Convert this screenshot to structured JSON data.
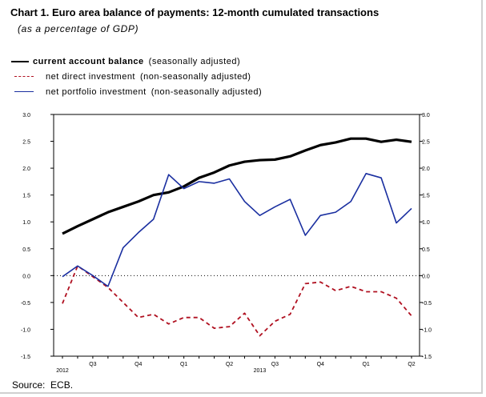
{
  "title": "Chart 1. Euro area balance of payments: 12-month cumulated transactions",
  "subtitle": "(as a percentage of GDP)",
  "legend": [
    {
      "label": "current account balance",
      "note": "(seasonally adjusted)",
      "color": "#000000",
      "style": "solid-bold"
    },
    {
      "label": "net direct investment",
      "note": "(non-seasonally adjusted)",
      "color": "#b01020",
      "style": "dashed"
    },
    {
      "label": "net portfolio investment",
      "note": "(non-seasonally adjusted)",
      "color": "#1a2fa0",
      "style": "solid"
    }
  ],
  "source": "Source:  ECB.",
  "chart_data": {
    "type": "line",
    "title": "Chart 1. Euro area balance of payments: 12-month cumulated transactions",
    "ylabel": "",
    "xlabel": "",
    "ylim": [
      -1.5,
      3.0
    ],
    "y_ticks": [
      "3.0",
      "2.5",
      "2.0",
      "1.5",
      "1.0",
      "0.5",
      "0.0",
      "-0.5",
      "-1.0",
      "-1.5"
    ],
    "x_tick_labels": [
      {
        "label": "2012",
        "row": 2,
        "month": 0
      },
      {
        "label": "Q3",
        "row": 1,
        "month": 2
      },
      {
        "label": "Q4",
        "row": 1,
        "month": 5
      },
      {
        "label": "Q1",
        "row": 1,
        "month": 8
      },
      {
        "label": "Q2",
        "row": 1,
        "month": 11
      },
      {
        "label": "2013",
        "row": 2,
        "month": 13
      },
      {
        "label": "Q3",
        "row": 1,
        "month": 14
      },
      {
        "label": "Q4",
        "row": 1,
        "month": 17
      },
      {
        "label": "Q1",
        "row": 1,
        "month": 20
      },
      {
        "label": "Q2",
        "row": 1,
        "month": 23
      }
    ],
    "zero_line": "dotted",
    "grid": false,
    "x": [
      0,
      1,
      2,
      3,
      4,
      5,
      6,
      7,
      8,
      9,
      10,
      11,
      12,
      13,
      14,
      15,
      16,
      17,
      18,
      19,
      20,
      21,
      22,
      23
    ],
    "series": [
      {
        "name": "current account balance",
        "color": "#000000",
        "values": [
          0.78,
          0.92,
          1.05,
          1.18,
          1.28,
          1.38,
          1.5,
          1.55,
          1.66,
          1.82,
          1.92,
          2.05,
          2.12,
          2.15,
          2.16,
          2.22,
          2.33,
          2.43,
          2.48,
          2.55,
          2.55,
          2.49,
          2.53,
          2.49
        ]
      },
      {
        "name": "net direct investment",
        "color": "#b01020",
        "values": [
          -0.52,
          0.18,
          -0.02,
          -0.22,
          -0.5,
          -0.78,
          -0.72,
          -0.9,
          -0.78,
          -0.78,
          -0.98,
          -0.95,
          -0.7,
          -1.12,
          -0.85,
          -0.72,
          -0.15,
          -0.12,
          -0.28,
          -0.2,
          -0.3,
          -0.3,
          -0.42,
          -0.75
        ]
      },
      {
        "name": "net portfolio investment",
        "color": "#1a2fa0",
        "values": [
          -0.02,
          0.18,
          0.0,
          -0.2,
          0.52,
          0.8,
          1.05,
          1.88,
          1.62,
          1.75,
          1.72,
          1.8,
          1.38,
          1.12,
          1.28,
          1.42,
          0.75,
          1.12,
          1.18,
          1.38,
          1.9,
          1.82,
          0.98,
          1.25
        ]
      }
    ]
  }
}
